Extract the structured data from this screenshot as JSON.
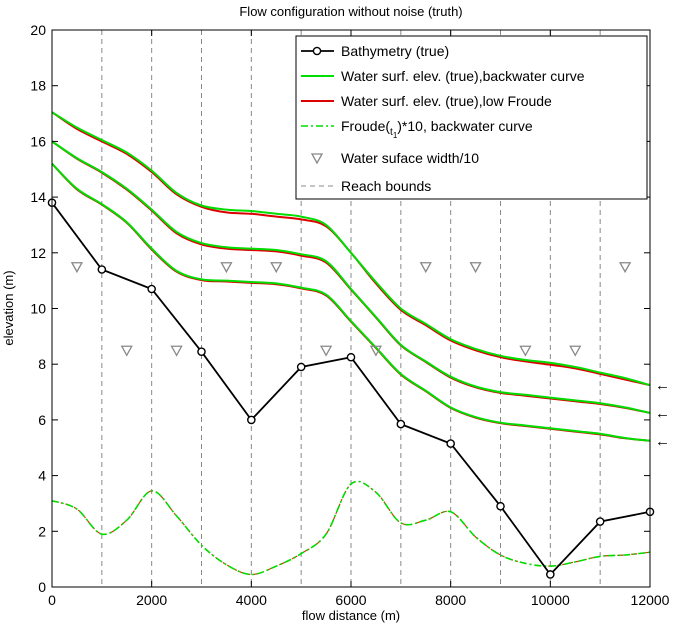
{
  "chart_data": {
    "type": "line",
    "title": "Flow configuration without noise (truth)",
    "xlabel": "flow distance (m)",
    "ylabel": "elevation (m)",
    "xlim": [
      0,
      12000
    ],
    "ylim": [
      0,
      20
    ],
    "xticks": [
      0,
      2000,
      4000,
      6000,
      8000,
      10000,
      12000
    ],
    "yticks": [
      0,
      2,
      4,
      6,
      8,
      10,
      12,
      14,
      16,
      18,
      20
    ],
    "grid": "vertical dashed lines at reach bounds",
    "legend_position": "top-right",
    "reach_bounds": [
      1000,
      2000,
      3000,
      4000,
      5000,
      6000,
      7000,
      8000,
      9000,
      10000,
      11000
    ],
    "bathymetry": {
      "name": "Bathymetry (true)",
      "color": "#000000",
      "x": [
        0,
        1000,
        2000,
        3000,
        4000,
        5000,
        6000,
        7000,
        8000,
        9000,
        10000,
        11000,
        12000
      ],
      "y": [
        13.8,
        11.4,
        10.7,
        8.45,
        6.0,
        7.9,
        8.25,
        5.85,
        5.15,
        2.9,
        0.45,
        2.35,
        2.7
      ]
    },
    "water_surface_x": [
      0,
      500,
      1000,
      1500,
      2000,
      2500,
      3000,
      3500,
      4000,
      4500,
      5000,
      5500,
      6000,
      6500,
      7000,
      7500,
      8000,
      8500,
      9000,
      9500,
      10000,
      10500,
      11000,
      11500,
      12000
    ],
    "backwater_series": [
      {
        "name": "Water surf. elev. (true),backwater curve",
        "color": "#00dd00",
        "y": [
          17.05,
          16.5,
          16.05,
          15.6,
          14.95,
          14.15,
          13.7,
          13.55,
          13.5,
          13.4,
          13.3,
          13.0,
          12.0,
          10.95,
          10.0,
          9.45,
          8.9,
          8.55,
          8.3,
          8.15,
          8.05,
          7.9,
          7.7,
          7.5,
          7.25
        ]
      },
      {
        "name": "",
        "color": "#00dd00",
        "y": [
          16.0,
          15.4,
          14.9,
          14.3,
          13.55,
          12.75,
          12.35,
          12.2,
          12.15,
          12.1,
          11.95,
          11.7,
          10.7,
          9.7,
          8.7,
          8.1,
          7.55,
          7.2,
          7.0,
          6.9,
          6.8,
          6.7,
          6.6,
          6.45,
          6.25
        ]
      },
      {
        "name": "",
        "color": "#00dd00",
        "y": [
          15.2,
          14.3,
          13.75,
          13.1,
          12.15,
          11.35,
          11.05,
          11.0,
          10.95,
          10.9,
          10.75,
          10.5,
          9.55,
          8.6,
          7.65,
          7.05,
          6.45,
          6.1,
          5.9,
          5.8,
          5.7,
          5.6,
          5.5,
          5.35,
          5.25
        ]
      }
    ],
    "lowfroude_series": [
      {
        "name": "Water surf. elev. (true),low Froude",
        "color": "#dd0000",
        "y": [
          17.05,
          16.45,
          16.0,
          15.55,
          14.9,
          14.1,
          13.65,
          13.45,
          13.4,
          13.3,
          13.2,
          12.95,
          12.0,
          10.9,
          9.95,
          9.4,
          8.85,
          8.5,
          8.25,
          8.1,
          7.98,
          7.85,
          7.65,
          7.45,
          7.25
        ]
      },
      {
        "name": "",
        "color": "#dd0000",
        "y": [
          16.0,
          15.38,
          14.88,
          14.27,
          13.52,
          12.7,
          12.3,
          12.15,
          12.1,
          12.05,
          11.9,
          11.65,
          10.68,
          9.68,
          8.68,
          8.08,
          7.52,
          7.17,
          6.97,
          6.87,
          6.77,
          6.67,
          6.57,
          6.43,
          6.25
        ]
      },
      {
        "name": "",
        "color": "#dd0000",
        "y": [
          15.2,
          14.28,
          13.73,
          13.08,
          12.12,
          11.32,
          11.02,
          10.97,
          10.92,
          10.87,
          10.72,
          10.47,
          9.53,
          8.58,
          7.63,
          7.03,
          6.43,
          6.08,
          5.88,
          5.78,
          5.68,
          5.58,
          5.48,
          5.34,
          5.25
        ]
      }
    ],
    "froude": {
      "name": "Froude(t1)*10, backwater curve",
      "color": "#00dd00",
      "x": [
        0,
        500,
        1000,
        1500,
        2000,
        2500,
        3000,
        3500,
        4000,
        4500,
        5000,
        5500,
        6000,
        6500,
        7000,
        7500,
        8000,
        8500,
        9000,
        9500,
        10000,
        10500,
        11000,
        11500,
        12000
      ],
      "y": [
        3.1,
        2.8,
        1.9,
        2.4,
        3.45,
        2.55,
        1.5,
        0.8,
        0.45,
        0.75,
        1.2,
        1.9,
        3.7,
        3.4,
        2.3,
        2.4,
        2.7,
        1.8,
        1.15,
        0.85,
        0.75,
        0.9,
        1.1,
        1.15,
        1.25
      ]
    },
    "widths": {
      "name": "Water suface width/10",
      "x": [
        500,
        1500,
        2500,
        3500,
        4500,
        5500,
        6500,
        7500,
        8500,
        9500,
        10500,
        11500
      ],
      "y": [
        11.5,
        8.5,
        8.5,
        11.5,
        11.5,
        8.5,
        8.5,
        11.5,
        11.5,
        8.5,
        8.5,
        11.5
      ]
    },
    "arrows": {
      "symbol": "←",
      "y": [
        7.25,
        6.25,
        5.25
      ]
    },
    "legend": [
      {
        "label": "Bathymetry (true)",
        "style": "bathy"
      },
      {
        "label": "Water surf. elev. (true),backwater curve",
        "style": "green"
      },
      {
        "label": "Water surf. elev. (true),low Froude",
        "style": "red"
      },
      {
        "label": "Froude(t1)*10, backwater curve",
        "style": "froude"
      },
      {
        "label": "Water suface width/10",
        "style": "triangle"
      },
      {
        "label": "Reach bounds",
        "style": "dash"
      }
    ]
  }
}
